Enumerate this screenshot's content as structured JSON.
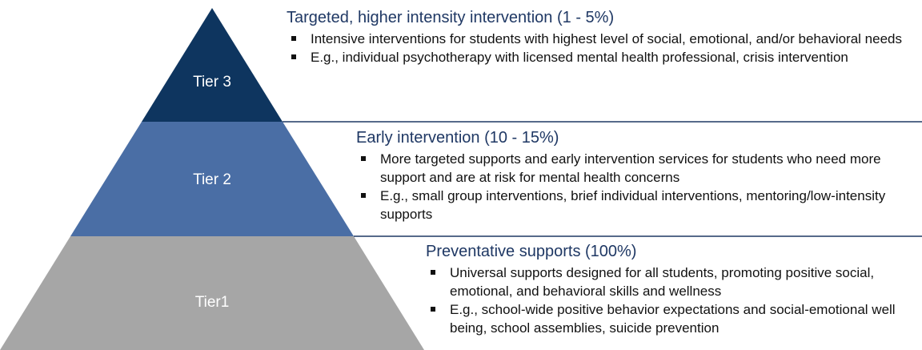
{
  "tiers": [
    {
      "label": "Tier 3",
      "title": "Targeted, higher intensity intervention (1 - 5%)",
      "bullets": [
        "Intensive interventions for students with highest level of social, emotional, and/or behavioral needs",
        "E.g., individual psychotherapy with licensed mental health professional, crisis intervention"
      ]
    },
    {
      "label": "Tier 2",
      "title": "Early intervention (10 - 15%)",
      "bullets": [
        "More targeted supports and early intervention services for students who need more support and are at risk for mental health concerns",
        "E.g., small group interventions, brief individual interventions, mentoring/low-intensity supports"
      ]
    },
    {
      "label": "Tier1",
      "title": "Preventative supports (100%)",
      "bullets": [
        "Universal supports designed for all students, promoting positive social, emotional, and behavioral skills and wellness",
        "E.g., school-wide positive behavior expectations and social-emotional well being, school assemblies, suicide prevention"
      ]
    }
  ]
}
